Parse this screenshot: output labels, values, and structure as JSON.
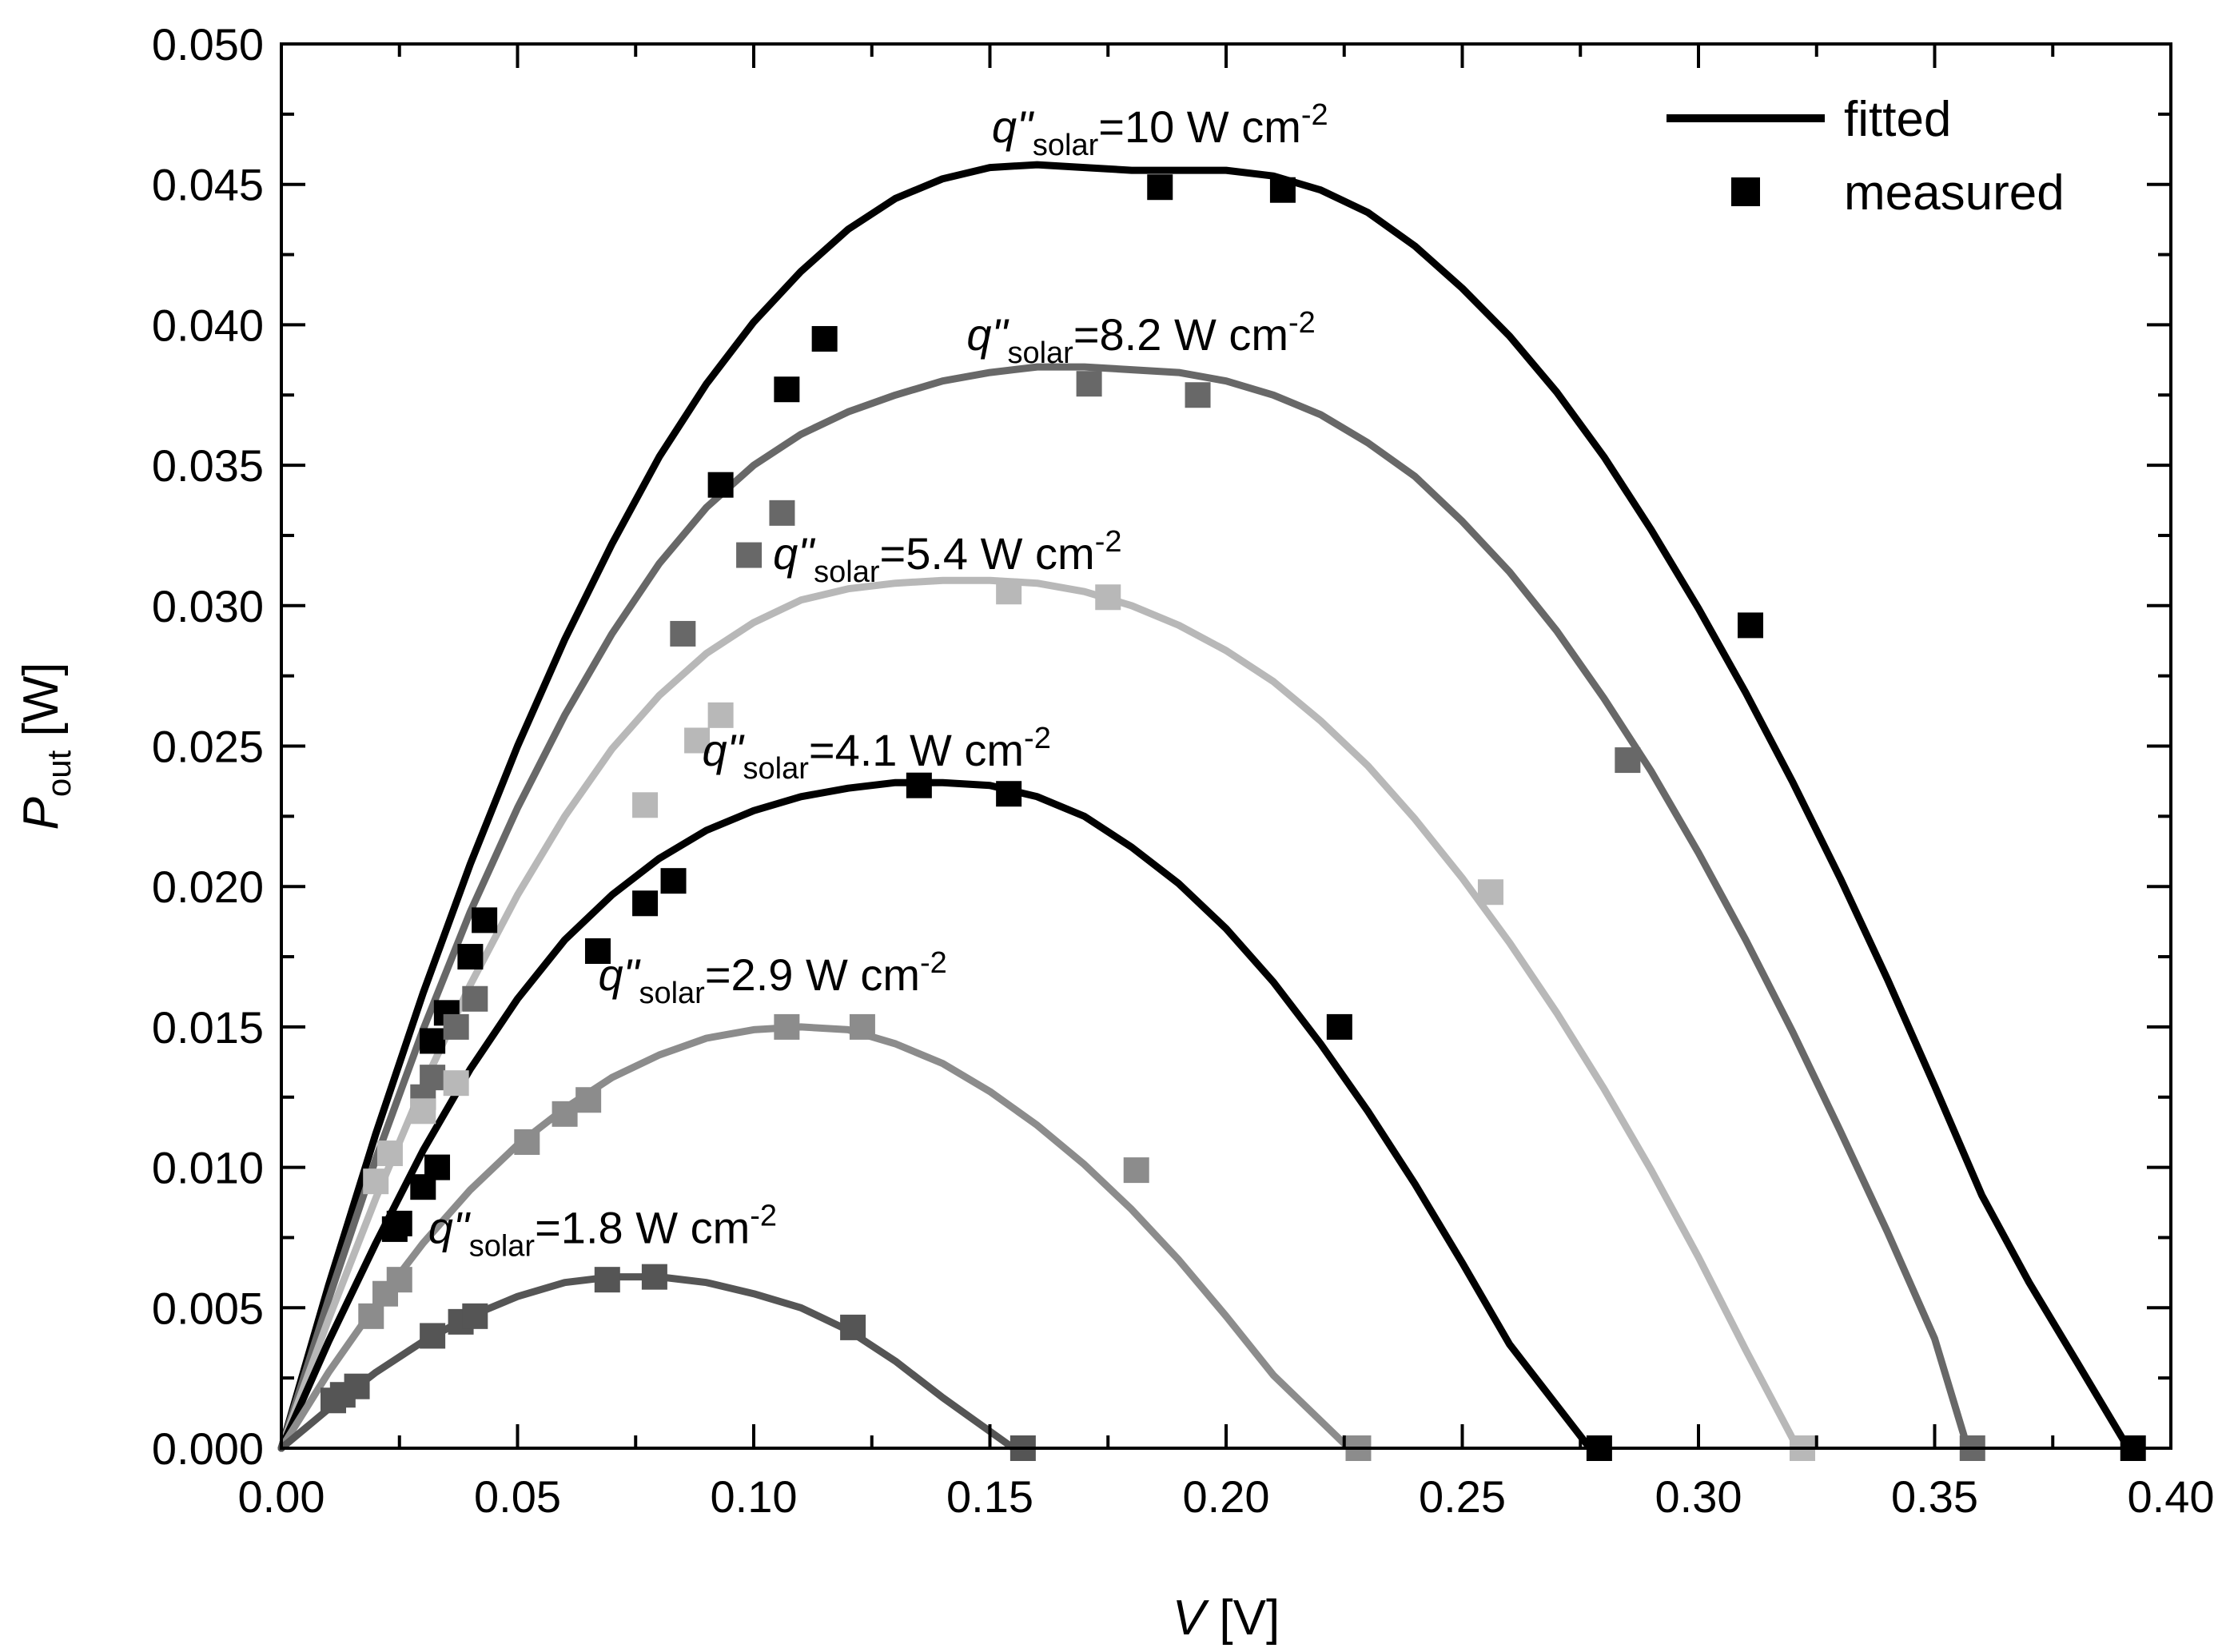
{
  "chart_data": {
    "type": "line",
    "title": "",
    "xlabel": {
      "symbol": "V",
      "unit": " [V]"
    },
    "ylabel": {
      "symbol": "P",
      "sub": "out",
      "unit": " [W]"
    },
    "xlim": [
      0,
      0.4
    ],
    "ylim": [
      0,
      0.05
    ],
    "x_ticks": [
      0.0,
      0.05,
      0.1,
      0.15,
      0.2,
      0.25,
      0.3,
      0.35,
      0.4
    ],
    "x_tick_labels": [
      "0.00",
      "0.05",
      "0.10",
      "0.15",
      "0.20",
      "0.25",
      "0.30",
      "0.35",
      "0.40"
    ],
    "y_ticks": [
      0.0,
      0.005,
      0.01,
      0.015,
      0.02,
      0.025,
      0.03,
      0.035,
      0.04,
      0.045,
      0.05
    ],
    "y_tick_labels": [
      "0.000",
      "0.005",
      "0.010",
      "0.015",
      "0.020",
      "0.025",
      "0.030",
      "0.035",
      "0.040",
      "0.045",
      "0.050"
    ],
    "grid": false,
    "legend": {
      "position": "top-right",
      "entries": [
        {
          "label": "fitted",
          "marker": "line"
        },
        {
          "label": "measured",
          "marker": "square"
        }
      ]
    },
    "series": [
      {
        "name": "q\"solar=10 W cm-2",
        "label": {
          "main": "q\"",
          "sub": "solar",
          "value": "=10 W cm",
          "sup": "-2",
          "at": [
            0.186,
            0.0465
          ]
        },
        "color": "#000000",
        "voc": 0.391,
        "fitted": {
          "x": [
            0,
            0.01,
            0.02,
            0.03,
            0.04,
            0.05,
            0.06,
            0.07,
            0.08,
            0.09,
            0.1,
            0.11,
            0.12,
            0.13,
            0.14,
            0.15,
            0.16,
            0.17,
            0.18,
            0.19,
            0.2,
            0.21,
            0.22,
            0.23,
            0.24,
            0.25,
            0.26,
            0.27,
            0.28,
            0.29,
            0.3,
            0.31,
            0.32,
            0.33,
            0.34,
            0.35,
            0.36,
            0.37,
            0.38,
            0.391
          ],
          "y": [
            0,
            0.0058,
            0.0112,
            0.0162,
            0.0208,
            0.025,
            0.0288,
            0.0322,
            0.0353,
            0.0379,
            0.0401,
            0.0419,
            0.0434,
            0.0445,
            0.0452,
            0.0456,
            0.0457,
            0.0456,
            0.0455,
            0.0455,
            0.0455,
            0.0453,
            0.0448,
            0.044,
            0.0428,
            0.0413,
            0.0396,
            0.0376,
            0.0353,
            0.0327,
            0.0299,
            0.0269,
            0.0237,
            0.0203,
            0.0167,
            0.0129,
            0.009,
            0.0059,
            0.0031,
            0
          ]
        },
        "measured": {
          "x": [
            0.025,
            0.032,
            0.035,
            0.04,
            0.043,
            0.093,
            0.107,
            0.115,
            0.186,
            0.212,
            0.311,
            0.392
          ],
          "y": [
            0.008,
            0.0145,
            0.0155,
            0.0175,
            0.0188,
            0.0343,
            0.0377,
            0.0395,
            0.0449,
            0.0448,
            0.0293,
            0.0
          ]
        }
      },
      {
        "name": "q\"solar=8.2 W cm-2",
        "label": {
          "main": "q\"",
          "sub": "solar",
          "value": "=8.2 W cm",
          "sup": "-2",
          "at": [
            0.182,
            0.0391
          ]
        },
        "color": "#686868",
        "voc": 0.357,
        "fitted": {
          "x": [
            0,
            0.01,
            0.02,
            0.03,
            0.04,
            0.05,
            0.06,
            0.07,
            0.08,
            0.09,
            0.1,
            0.11,
            0.12,
            0.13,
            0.14,
            0.15,
            0.16,
            0.17,
            0.18,
            0.19,
            0.2,
            0.21,
            0.22,
            0.23,
            0.24,
            0.25,
            0.26,
            0.27,
            0.28,
            0.29,
            0.3,
            0.31,
            0.32,
            0.33,
            0.34,
            0.35,
            0.357
          ],
          "y": [
            0,
            0.0053,
            0.0103,
            0.0149,
            0.0191,
            0.0228,
            0.0261,
            0.029,
            0.0315,
            0.0335,
            0.035,
            0.0361,
            0.0369,
            0.0375,
            0.038,
            0.0383,
            0.0385,
            0.0385,
            0.0384,
            0.0383,
            0.038,
            0.0375,
            0.0368,
            0.0358,
            0.0346,
            0.033,
            0.0312,
            0.0291,
            0.0267,
            0.0241,
            0.0212,
            0.0181,
            0.0148,
            0.0113,
            0.0077,
            0.0039,
            0
          ]
        },
        "measured": {
          "x": [
            0.03,
            0.032,
            0.037,
            0.041,
            0.085,
            0.099,
            0.106,
            0.171,
            0.194,
            0.285,
            0.358
          ],
          "y": [
            0.0125,
            0.0132,
            0.015,
            0.016,
            0.029,
            0.0318,
            0.0333,
            0.0379,
            0.0375,
            0.0245,
            0.0
          ]
        }
      },
      {
        "name": "q\"solar=5.4 W cm-2",
        "label": {
          "main": "q\"",
          "sub": "solar",
          "value": "=5.4 W cm",
          "sup": "-2",
          "at": [
            0.141,
            0.0313
          ]
        },
        "color": "#b8b8b8",
        "voc": 0.321,
        "fitted": {
          "x": [
            0,
            0.01,
            0.02,
            0.03,
            0.04,
            0.05,
            0.06,
            0.07,
            0.08,
            0.09,
            0.1,
            0.11,
            0.12,
            0.13,
            0.14,
            0.15,
            0.16,
            0.17,
            0.18,
            0.19,
            0.2,
            0.21,
            0.22,
            0.23,
            0.24,
            0.25,
            0.26,
            0.27,
            0.28,
            0.29,
            0.3,
            0.31,
            0.321
          ],
          "y": [
            0,
            0.0046,
            0.0089,
            0.0129,
            0.0165,
            0.0197,
            0.0225,
            0.0249,
            0.0268,
            0.0283,
            0.0294,
            0.0302,
            0.0306,
            0.0308,
            0.0309,
            0.0309,
            0.0308,
            0.0305,
            0.03,
            0.0293,
            0.0284,
            0.0273,
            0.0259,
            0.0243,
            0.0224,
            0.0203,
            0.018,
            0.0155,
            0.0128,
            0.0099,
            0.0068,
            0.0035,
            0
          ]
        },
        "measured": {
          "x": [
            0.02,
            0.023,
            0.03,
            0.037,
            0.077,
            0.088,
            0.093,
            0.154,
            0.175,
            0.256,
            0.322
          ],
          "y": [
            0.0095,
            0.0105,
            0.012,
            0.013,
            0.0229,
            0.0252,
            0.0261,
            0.0305,
            0.0303,
            0.0198,
            0.0
          ]
        }
      },
      {
        "name": "q\"solar=4.1 W cm-2",
        "label": {
          "main": "q\"",
          "sub": "solar",
          "value": "=4.1 W cm",
          "sup": "-2",
          "at": [
            0.126,
            0.0243
          ]
        },
        "color": "#000000",
        "voc": 0.277,
        "fitted": {
          "x": [
            0,
            0.01,
            0.02,
            0.03,
            0.04,
            0.05,
            0.06,
            0.07,
            0.08,
            0.09,
            0.1,
            0.11,
            0.12,
            0.13,
            0.14,
            0.15,
            0.16,
            0.17,
            0.18,
            0.19,
            0.2,
            0.21,
            0.22,
            0.23,
            0.24,
            0.25,
            0.26,
            0.277
          ],
          "y": [
            0,
            0.0038,
            0.0073,
            0.0106,
            0.0135,
            0.016,
            0.0181,
            0.0197,
            0.021,
            0.022,
            0.0227,
            0.0232,
            0.0235,
            0.0237,
            0.0237,
            0.0236,
            0.0232,
            0.0225,
            0.0214,
            0.0201,
            0.0185,
            0.0166,
            0.0144,
            0.012,
            0.0094,
            0.0066,
            0.0037,
            0
          ]
        },
        "measured": {
          "x": [
            0.024,
            0.03,
            0.033,
            0.067,
            0.077,
            0.083,
            0.135,
            0.154,
            0.224,
            0.279
          ],
          "y": [
            0.0078,
            0.0093,
            0.01,
            0.0177,
            0.0194,
            0.0202,
            0.0236,
            0.0233,
            0.015,
            0.0
          ]
        }
      },
      {
        "name": "q\"solar=2.9 W cm-2",
        "label": {
          "main": "q\"",
          "sub": "solar",
          "value": "=2.9 W cm",
          "sup": "-2",
          "at": [
            0.104,
            0.0163
          ]
        },
        "color": "#8c8c8c",
        "voc": 0.226,
        "fitted": {
          "x": [
            0,
            0.01,
            0.02,
            0.03,
            0.04,
            0.05,
            0.06,
            0.07,
            0.08,
            0.09,
            0.1,
            0.11,
            0.12,
            0.13,
            0.14,
            0.15,
            0.16,
            0.17,
            0.18,
            0.19,
            0.2,
            0.21,
            0.226
          ],
          "y": [
            0,
            0.0027,
            0.0051,
            0.0073,
            0.0092,
            0.0108,
            0.0121,
            0.0132,
            0.014,
            0.0146,
            0.0149,
            0.015,
            0.0149,
            0.0144,
            0.0137,
            0.0127,
            0.0115,
            0.0101,
            0.0085,
            0.0067,
            0.0047,
            0.0026,
            0
          ]
        },
        "measured": {
          "x": [
            0.019,
            0.022,
            0.025,
            0.052,
            0.06,
            0.065,
            0.107,
            0.123,
            0.181,
            0.228
          ],
          "y": [
            0.0047,
            0.0055,
            0.006,
            0.0109,
            0.0119,
            0.0124,
            0.015,
            0.015,
            0.0099,
            0.0
          ]
        }
      },
      {
        "name": "q\"solar=1.8 W cm-2",
        "label": {
          "main": "q\"",
          "sub": "solar",
          "value": "=1.8 W cm",
          "sup": "-2",
          "at": [
            0.068,
            0.0073
          ]
        },
        "color": "#555555",
        "voc": 0.155,
        "fitted": {
          "x": [
            0,
            0.01,
            0.02,
            0.03,
            0.04,
            0.05,
            0.06,
            0.07,
            0.08,
            0.09,
            0.1,
            0.11,
            0.12,
            0.13,
            0.14,
            0.155
          ],
          "y": [
            0,
            0.0014,
            0.0027,
            0.0038,
            0.0047,
            0.0054,
            0.0059,
            0.0061,
            0.0061,
            0.0059,
            0.0055,
            0.005,
            0.0042,
            0.0031,
            0.0018,
            0
          ]
        },
        "measured": {
          "x": [
            0.011,
            0.013,
            0.016,
            0.032,
            0.038,
            0.041,
            0.069,
            0.079,
            0.121,
            0.157
          ],
          "y": [
            0.0017,
            0.0019,
            0.0022,
            0.004,
            0.0045,
            0.0047,
            0.006,
            0.0061,
            0.0043,
            0.0
          ]
        }
      }
    ]
  }
}
